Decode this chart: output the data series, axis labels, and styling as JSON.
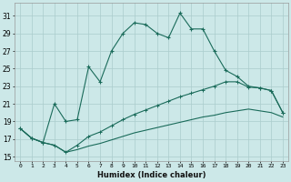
{
  "xlabel": "Humidex (Indice chaleur)",
  "bg_color": "#cce8e8",
  "line_color": "#1a6b5a",
  "grid_color": "#aacccc",
  "xlim": [
    -0.5,
    23.5
  ],
  "ylim": [
    14.5,
    32.5
  ],
  "xticks": [
    0,
    1,
    2,
    3,
    4,
    5,
    6,
    7,
    8,
    9,
    10,
    11,
    12,
    13,
    14,
    15,
    16,
    17,
    18,
    19,
    20,
    21,
    22,
    23
  ],
  "yticks": [
    15,
    17,
    19,
    21,
    23,
    25,
    27,
    29,
    31
  ],
  "line1_x": [
    0,
    1,
    2,
    3,
    4,
    5,
    6,
    7,
    8,
    9,
    10,
    11,
    12,
    13,
    14,
    15,
    16,
    17,
    18,
    19,
    20,
    21,
    22,
    23
  ],
  "line1_y": [
    18.2,
    17.1,
    16.6,
    21.0,
    19.0,
    19.2,
    25.2,
    23.5,
    27.0,
    29.0,
    30.2,
    30.0,
    29.0,
    28.5,
    31.3,
    29.5,
    29.5,
    27.0,
    24.8,
    24.1,
    23.0,
    22.8,
    22.5,
    20.0
  ],
  "line2_x": [
    0,
    1,
    2,
    3,
    4,
    5,
    6,
    7,
    8,
    9,
    10,
    11,
    12,
    13,
    14,
    15,
    16,
    17,
    18,
    19,
    20,
    21,
    22,
    23
  ],
  "line2_y": [
    18.2,
    17.1,
    16.6,
    16.3,
    15.5,
    16.3,
    17.3,
    17.8,
    18.5,
    19.2,
    19.8,
    20.3,
    20.8,
    21.3,
    21.8,
    22.2,
    22.6,
    23.0,
    23.5,
    23.5,
    22.9,
    22.8,
    22.5,
    20.0
  ],
  "line3_x": [
    0,
    1,
    2,
    3,
    4,
    5,
    6,
    7,
    8,
    9,
    10,
    11,
    12,
    13,
    14,
    15,
    16,
    17,
    18,
    19,
    20,
    21,
    22,
    23
  ],
  "line3_y": [
    18.2,
    17.1,
    16.6,
    16.3,
    15.5,
    15.8,
    16.2,
    16.5,
    16.9,
    17.3,
    17.7,
    18.0,
    18.3,
    18.6,
    18.9,
    19.2,
    19.5,
    19.7,
    20.0,
    20.2,
    20.4,
    20.2,
    20.0,
    19.5
  ]
}
